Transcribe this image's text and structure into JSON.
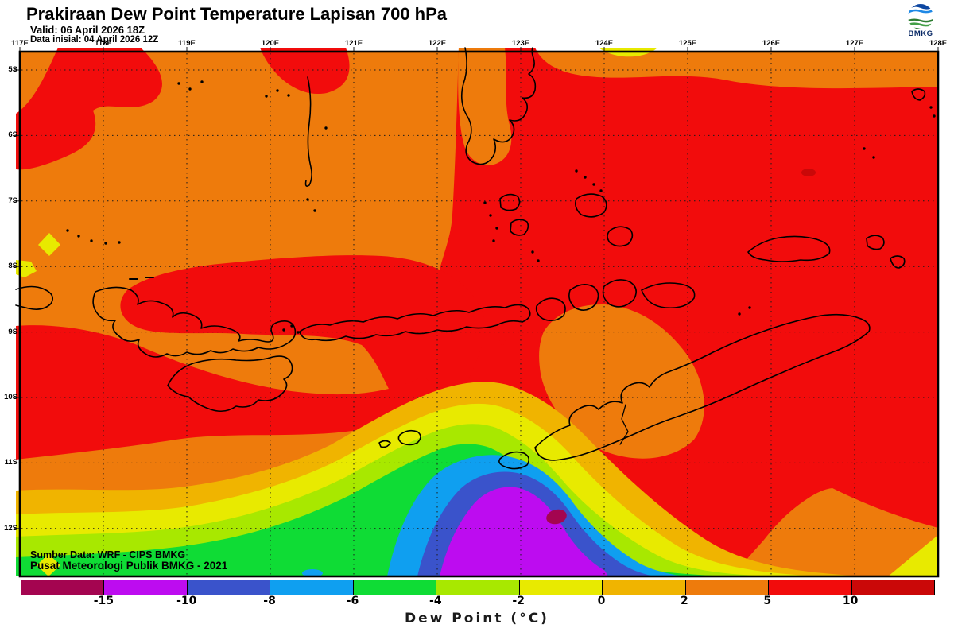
{
  "header": {
    "title": "Prakiraan Dew Point Temperature Lapisan 700 hPa",
    "valid": "Valid: 06 April 2026 18Z",
    "init": "Data inisial: 04 April 2026 12Z",
    "logo_text": "BMKG"
  },
  "map": {
    "x_labels": [
      "117E",
      "118E",
      "119E",
      "120E",
      "121E",
      "122E",
      "123E",
      "124E",
      "125E",
      "126E",
      "127E",
      "128E"
    ],
    "y_labels": [
      "5S",
      "6S",
      "7S",
      "8S",
      "9S",
      "10S",
      "11S",
      "12S"
    ],
    "source_line1": "Sumber Data: WRF - CIPS BMKG",
    "source_line2": "Pusat Meteorologi Publik BMKG -  2021"
  },
  "colorbar": {
    "colors": [
      "#a40550",
      "#bd0cf0",
      "#3a53cb",
      "#0f9ff0",
      "#0fdc35",
      "#a8e800",
      "#e8ea00",
      "#f0b400",
      "#ee7b0c",
      "#f20c0c",
      "#ca0808"
    ],
    "tick_labels": [
      "-15",
      "-10",
      "-8",
      "-6",
      "-4",
      "-2",
      "0",
      "2",
      "5",
      "10"
    ],
    "title": "Dew Point (°C)"
  },
  "palette": {
    "orange": "#ee7b0c",
    "red": "#f20c0c",
    "dark_red": "#ca0808",
    "amber": "#f0b400",
    "yellow": "#e8ea00",
    "yellow_green": "#a8e800",
    "green": "#0fdc35",
    "light_blue": "#0f9ff0",
    "royal_blue": "#3a53cb",
    "magenta": "#bd0cf0",
    "maroon": "#a40550",
    "coastline": "#000000",
    "logo_blue": "#1565c0",
    "logo_green": "#2e7d32"
  },
  "chart_data": {
    "type": "heatmap",
    "title": "Prakiraan Dew Point Temperature Lapisan 700 hPa",
    "legend_title": "Dew Point (°C)",
    "scale_breaks": [
      -15,
      -10,
      -8,
      -6,
      -4,
      -2,
      0,
      2,
      5,
      10
    ],
    "x_range_deg_east": [
      117,
      128
    ],
    "y_range_deg_south": [
      5,
      12
    ],
    "grid": "dotted 1-degree graticule"
  }
}
